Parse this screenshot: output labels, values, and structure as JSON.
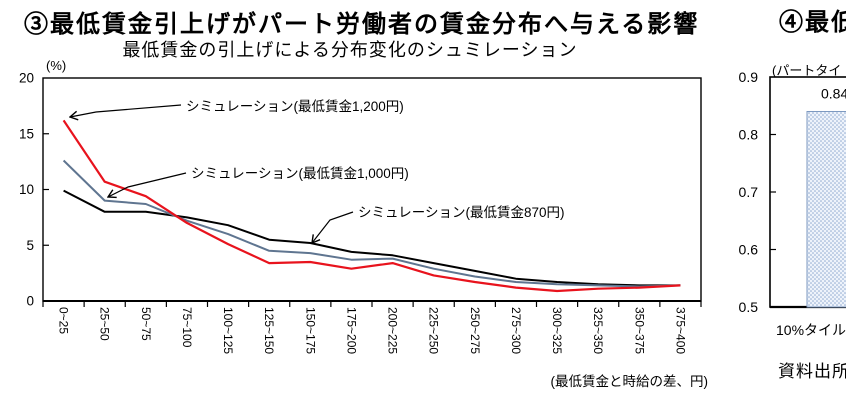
{
  "left_chart": {
    "title": "③最低賃金引上げがパート労働者の賃金分布へ与える影響",
    "subtitle": "最低賃金の引上げによる分布変化のシュミレーション",
    "y_unit_label": "(%)",
    "x_axis_note": "(最低賃金と時給の差、円)"
  },
  "right_chart": {
    "title_partial": "④最低賃金",
    "paren_note_partial": "(パートタイ",
    "x_category_partial": "10%タイル",
    "source_note_partial": "資料出所",
    "bar_value_label": "0.84"
  },
  "colors": {
    "series_1200": "#e8131d",
    "series_1000": "#5f7590",
    "series_870": "#000000",
    "bar_fill": "#eef3fb",
    "bar_dot": "#8fa9d0",
    "bar_border": "#7d99c0",
    "axis": "#000000"
  },
  "chart_data": [
    {
      "type": "line",
      "title": "最低賃金の引上げによる分布変化のシュミレーション",
      "ylabel": "(%)",
      "xlabel": "(最低賃金と時給の差、円)",
      "ylim": [
        0,
        20
      ],
      "yticks": [
        0,
        5,
        10,
        15,
        20
      ],
      "grid": false,
      "legend_position": "inline-annotations-with-arrows",
      "categories": [
        "0~25",
        "25~50",
        "50~75",
        "75~100",
        "100~125",
        "125~150",
        "150~175",
        "175~200",
        "200~225",
        "225~250",
        "250~275",
        "275~300",
        "300~325",
        "325~350",
        "350~375",
        "375~400"
      ],
      "series": [
        {
          "name": "シミュレーション(最低賃金1,200円)",
          "color": "#e8131d",
          "values": [
            16.2,
            10.7,
            9.4,
            7.0,
            5.1,
            3.4,
            3.5,
            2.9,
            3.4,
            2.3,
            1.7,
            1.2,
            0.9,
            1.1,
            1.2,
            1.4
          ]
        },
        {
          "name": "シミュレーション(最低賃金1,000円)",
          "color": "#5f7590",
          "values": [
            12.6,
            9.0,
            8.7,
            7.2,
            6.0,
            4.5,
            4.3,
            3.7,
            3.8,
            2.9,
            2.2,
            1.7,
            1.5,
            1.4,
            1.3,
            1.4
          ]
        },
        {
          "name": "シミュレーション(最低賃金870円)",
          "color": "#000000",
          "values": [
            9.9,
            8.0,
            8.0,
            7.5,
            6.8,
            5.5,
            5.2,
            4.4,
            4.1,
            3.4,
            2.7,
            2.0,
            1.7,
            1.5,
            1.4,
            1.4
          ]
        }
      ]
    },
    {
      "type": "bar",
      "title_partial": "(パートタイ",
      "categories": [
        "10%タイル"
      ],
      "values": [
        0.84
      ],
      "data_labels": [
        "0.84"
      ],
      "ylim": [
        0.5,
        0.9
      ],
      "yticks": [
        0.5,
        0.6,
        0.7,
        0.8,
        0.9
      ],
      "grid": false
    }
  ]
}
